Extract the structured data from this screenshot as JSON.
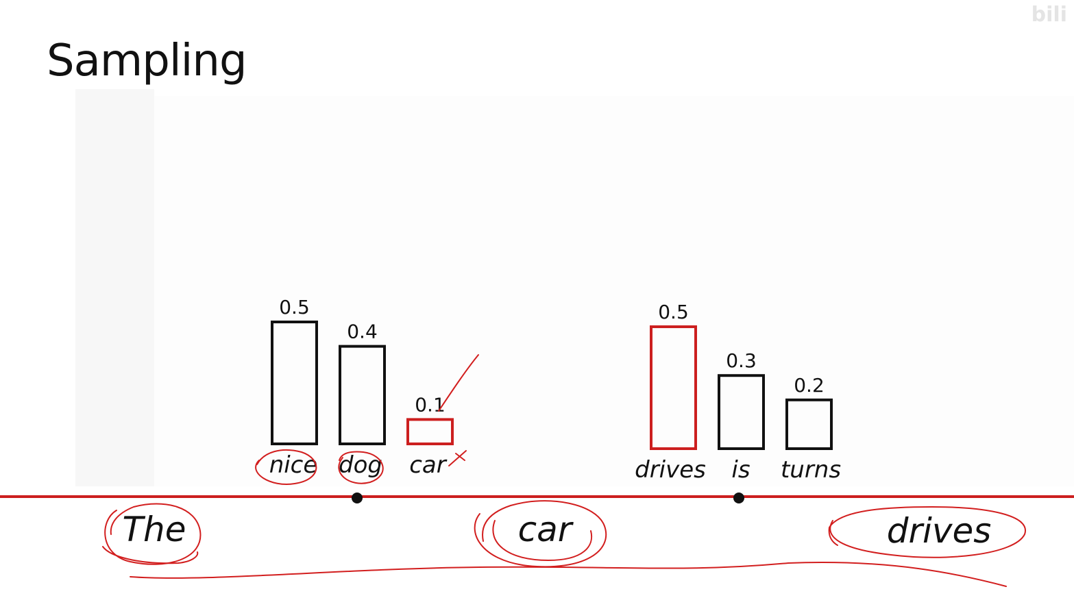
{
  "title": "Sampling",
  "watermark": "bili",
  "colors": {
    "selected": "#cc1f1f",
    "unselected": "#111111",
    "timeline": "#cc1f1f",
    "ink": "#d21e1e"
  },
  "chart_data": [
    {
      "type": "bar",
      "step": 1,
      "categories": [
        "nice",
        "dog",
        "car"
      ],
      "values": [
        0.5,
        0.4,
        0.1
      ],
      "value_labels": [
        "0.5",
        "0.4",
        "0.1"
      ],
      "selected": "car",
      "ylim": [
        0,
        0.5
      ]
    },
    {
      "type": "bar",
      "step": 2,
      "categories": [
        "drives",
        "is",
        "turns"
      ],
      "values": [
        0.5,
        0.3,
        0.2
      ],
      "value_labels": [
        "0.5",
        "0.3",
        "0.2"
      ],
      "selected": "drives",
      "ylim": [
        0,
        0.5
      ]
    }
  ],
  "timeline_words": [
    "The",
    "car",
    "drives"
  ]
}
